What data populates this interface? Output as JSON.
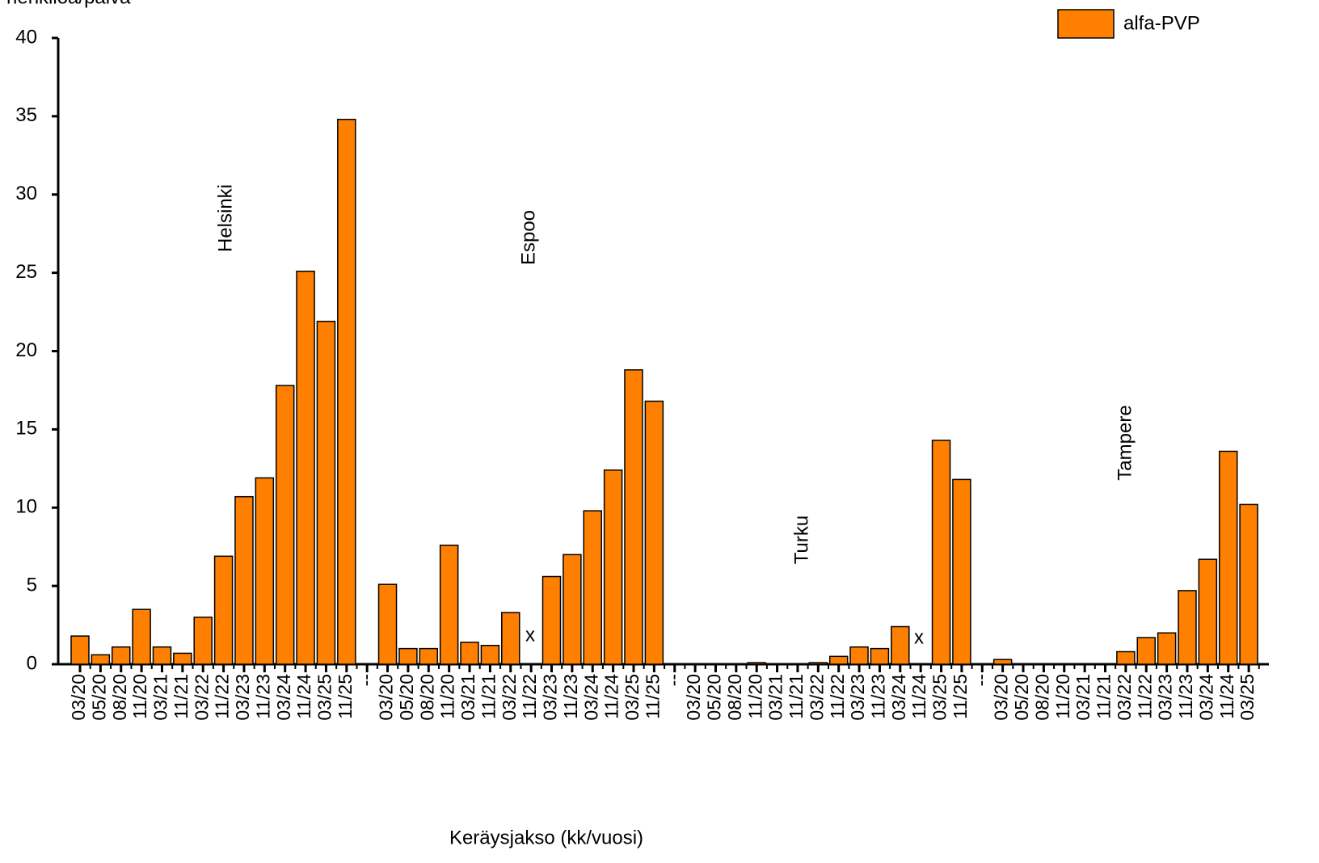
{
  "chart_data": {
    "type": "bar",
    "ylabel": "henkilöä/päivä",
    "xlabel": "Keräysjakso (kk/vuosi)",
    "legend": "alfa-PVP",
    "color": "#ff7f00",
    "categories": [
      "03/20",
      "05/20",
      "08/20",
      "11/20",
      "03/21",
      "11/21",
      "03/22",
      "11/22",
      "03/23",
      "11/23",
      "03/24",
      "11/24",
      "03/25",
      "11/25",
      "--",
      "03/20",
      "05/20",
      "08/20",
      "11/20",
      "03/21",
      "11/21",
      "03/22",
      "11/22",
      "03/23",
      "11/23",
      "03/24",
      "11/24",
      "03/25",
      "11/25",
      "--",
      "03/20",
      "05/20",
      "08/20",
      "11/20",
      "03/21",
      "11/21",
      "03/22",
      "11/22",
      "03/23",
      "11/23",
      "03/24",
      "11/24",
      "03/25",
      "11/25",
      "--",
      "03/20",
      "05/20",
      "08/20",
      "11/20",
      "03/21",
      "11/21",
      "03/22",
      "11/22",
      "03/23",
      "11/23",
      "03/24",
      "11/24",
      "03/25"
    ],
    "values": [
      1.8,
      0.6,
      1.1,
      3.5,
      1.1,
      0.7,
      3.0,
      6.9,
      10.7,
      11.9,
      17.8,
      25.1,
      21.9,
      34.8,
      null,
      5.1,
      1.0,
      1.0,
      7.6,
      1.4,
      1.2,
      3.3,
      null,
      5.6,
      7.0,
      9.8,
      12.4,
      18.8,
      16.8,
      null,
      0,
      0,
      0,
      0.1,
      0,
      0,
      0.1,
      0.5,
      1.1,
      1.0,
      2.4,
      null,
      14.3,
      11.8,
      null,
      0.3,
      0,
      0,
      0,
      0,
      0,
      0.8,
      1.7,
      2.0,
      4.7,
      6.7,
      13.6,
      10.2
    ],
    "annotations": [
      "Helsinki",
      "Espoo",
      "Turku",
      "Tampere",
      "x",
      "x"
    ],
    "ylim": [
      0,
      40
    ],
    "yticks": [
      0,
      5,
      10,
      15,
      20,
      25,
      30,
      35,
      40
    ]
  }
}
